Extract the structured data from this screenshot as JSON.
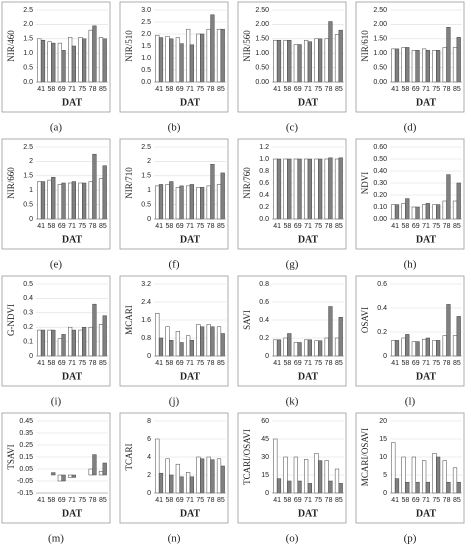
{
  "chart_data": [
    {
      "type": "bar",
      "label": "(a)",
      "y_label": "NIR/460",
      "x_label": "DAT",
      "categories": [
        "41",
        "58",
        "69",
        "71",
        "75",
        "78",
        "85"
      ],
      "series": [
        {
          "color": "#ffffff",
          "values": [
            1.5,
            1.4,
            1.35,
            1.55,
            1.55,
            1.8,
            1.55
          ]
        },
        {
          "color": "#808080",
          "values": [
            1.45,
            1.35,
            1.1,
            1.25,
            1.5,
            1.95,
            1.5
          ]
        }
      ],
      "ylim": [
        0,
        2.5
      ],
      "yticks": [
        {
          "value": 0,
          "label": "0.0"
        },
        0.5,
        {
          "value": 1,
          "label": "1.0"
        },
        1.5,
        {
          "value": 2,
          "label": "2.0"
        },
        2.5
      ]
    },
    {
      "type": "bar",
      "label": "(b)",
      "y_label": "NIR/510",
      "x_label": "DAT",
      "categories": [
        "41",
        "58",
        "69",
        "71",
        "75",
        "78",
        "85"
      ],
      "series": [
        {
          "color": "#ffffff",
          "values": [
            1.95,
            1.9,
            1.85,
            2.2,
            2.0,
            2.2,
            2.2
          ]
        },
        {
          "color": "#808080",
          "values": [
            1.85,
            1.8,
            1.6,
            1.55,
            2.0,
            2.8,
            2.2
          ]
        }
      ],
      "ylim": [
        0,
        3
      ],
      "yticks": [
        {
          "value": 0,
          "label": "0.0"
        },
        0.5,
        {
          "value": 1,
          "label": "1.0"
        },
        1.5,
        {
          "value": 2,
          "label": "2.0"
        },
        2.5,
        {
          "value": 3,
          "label": "3.0"
        }
      ]
    },
    {
      "type": "bar",
      "label": "(c)",
      "y_label": "NIR/560",
      "x_label": "DAT",
      "categories": [
        "41",
        "58",
        "69",
        "71",
        "75",
        "78",
        "85"
      ],
      "series": [
        {
          "color": "#ffffff",
          "values": [
            1.45,
            1.45,
            1.3,
            1.45,
            1.5,
            1.5,
            1.65
          ]
        },
        {
          "color": "#808080",
          "values": [
            1.45,
            1.45,
            1.3,
            1.4,
            1.5,
            2.1,
            1.8
          ]
        }
      ],
      "ylim": [
        0,
        2.5
      ],
      "yticks": [
        {
          "value": 0,
          "label": "0.00"
        },
        {
          "value": 0.5,
          "label": "0.50"
        },
        {
          "value": 1,
          "label": "1.00"
        },
        {
          "value": 1.5,
          "label": "1.50"
        },
        {
          "value": 2,
          "label": "2.00"
        },
        {
          "value": 2.5,
          "label": "2.50"
        }
      ]
    },
    {
      "type": "bar",
      "label": "(d)",
      "y_label": "NIR/610",
      "x_label": "DAT",
      "categories": [
        "41",
        "58",
        "69",
        "71",
        "75",
        "78",
        "85"
      ],
      "series": [
        {
          "color": "#ffffff",
          "values": [
            1.15,
            1.2,
            1.1,
            1.15,
            1.1,
            1.2,
            1.2
          ]
        },
        {
          "color": "#808080",
          "values": [
            1.15,
            1.2,
            1.1,
            1.1,
            1.1,
            1.9,
            1.55
          ]
        }
      ],
      "ylim": [
        0,
        2.5
      ],
      "yticks": [
        {
          "value": 0,
          "label": "0.00"
        },
        {
          "value": 0.5,
          "label": "0.50"
        },
        {
          "value": 1,
          "label": "1.00"
        },
        {
          "value": 1.5,
          "label": "1.50"
        },
        {
          "value": 2,
          "label": "2.00"
        },
        {
          "value": 2.5,
          "label": "2.50"
        }
      ]
    },
    {
      "type": "bar",
      "label": "(e)",
      "y_label": "NIR/660",
      "x_label": "DAT",
      "categories": [
        "41",
        "58",
        "69",
        "71",
        "75",
        "78",
        "85"
      ],
      "series": [
        {
          "color": "#ffffff",
          "values": [
            1.3,
            1.35,
            1.2,
            1.25,
            1.25,
            1.3,
            1.4
          ]
        },
        {
          "color": "#808080",
          "values": [
            1.3,
            1.45,
            1.25,
            1.3,
            1.25,
            2.25,
            1.85
          ]
        }
      ],
      "ylim": [
        0,
        2.5
      ],
      "yticks": [
        0,
        0.5,
        1,
        1.5,
        2,
        2.5
      ]
    },
    {
      "type": "bar",
      "label": "(f)",
      "y_label": "NIR/710",
      "x_label": "DAT",
      "categories": [
        "41",
        "58",
        "69",
        "71",
        "75",
        "78",
        "85"
      ],
      "series": [
        {
          "color": "#ffffff",
          "values": [
            1.15,
            1.2,
            1.1,
            1.15,
            1.1,
            1.15,
            1.2
          ]
        },
        {
          "color": "#808080",
          "values": [
            1.2,
            1.3,
            1.15,
            1.2,
            1.1,
            1.9,
            1.6
          ]
        }
      ],
      "ylim": [
        0,
        2.5
      ],
      "yticks": [
        0,
        0.5,
        1,
        1.5,
        2,
        2.5
      ]
    },
    {
      "type": "bar",
      "label": "(g)",
      "y_label": "NIR/760",
      "x_label": "DAT",
      "categories": [
        "41",
        "58",
        "69",
        "71",
        "75",
        "78",
        "85"
      ],
      "series": [
        {
          "color": "#ffffff",
          "values": [
            1.0,
            1.0,
            1.0,
            1.0,
            1.0,
            1.0,
            1.0
          ]
        },
        {
          "color": "#808080",
          "values": [
            1.0,
            1.0,
            1.0,
            1.0,
            1.0,
            1.02,
            1.02
          ]
        }
      ],
      "ylim": [
        0,
        1.2
      ],
      "yticks": [
        {
          "value": 0,
          "label": "0.0"
        },
        0.2,
        0.4,
        0.6,
        0.8,
        {
          "value": 1,
          "label": "1.0"
        },
        1.2
      ]
    },
    {
      "type": "bar",
      "label": "(h)",
      "y_label": "NDVI",
      "x_label": "DAT",
      "categories": [
        "41",
        "58",
        "69",
        "71",
        "75",
        "78",
        "85"
      ],
      "series": [
        {
          "color": "#ffffff",
          "values": [
            0.12,
            0.13,
            0.1,
            0.12,
            0.12,
            0.15,
            0.15
          ]
        },
        {
          "color": "#808080",
          "values": [
            0.12,
            0.17,
            0.1,
            0.13,
            0.12,
            0.37,
            0.3
          ]
        }
      ],
      "ylim": [
        0,
        0.6
      ],
      "yticks": [
        {
          "value": 0,
          "label": "0.00"
        },
        {
          "value": 0.1,
          "label": "0.10"
        },
        {
          "value": 0.2,
          "label": "0.20"
        },
        {
          "value": 0.3,
          "label": "0.30"
        },
        {
          "value": 0.4,
          "label": "0.40"
        },
        {
          "value": 0.5,
          "label": "0.50"
        },
        {
          "value": 0.6,
          "label": "0.60"
        }
      ]
    },
    {
      "type": "bar",
      "label": "(i)",
      "y_label": "G-NDVI",
      "x_label": "DAT",
      "categories": [
        "41",
        "58",
        "69",
        "71",
        "75",
        "78",
        "85"
      ],
      "series": [
        {
          "color": "#ffffff",
          "values": [
            0.18,
            0.18,
            0.12,
            0.2,
            0.18,
            0.2,
            0.22
          ]
        },
        {
          "color": "#808080",
          "values": [
            0.18,
            0.18,
            0.15,
            0.18,
            0.2,
            0.36,
            0.28
          ]
        }
      ],
      "ylim": [
        0,
        0.5
      ],
      "yticks": [
        0,
        0.1,
        0.2,
        0.3,
        0.4,
        0.5
      ]
    },
    {
      "type": "bar",
      "label": "(j)",
      "y_label": "MCARI",
      "x_label": "DAT",
      "categories": [
        "41",
        "58",
        "69",
        "71",
        "75",
        "78",
        "85"
      ],
      "series": [
        {
          "color": "#ffffff",
          "values": [
            1.9,
            1.3,
            1.1,
            0.9,
            1.4,
            1.4,
            1.3
          ]
        },
        {
          "color": "#808080",
          "values": [
            0.8,
            0.7,
            0.6,
            0.7,
            1.3,
            1.3,
            1.0
          ]
        }
      ],
      "ylim": [
        0,
        3.2
      ],
      "yticks": [
        0,
        0.8,
        1.6,
        2.4,
        3.2
      ]
    },
    {
      "type": "bar",
      "label": "(k)",
      "y_label": "SAVI",
      "x_label": "DAT",
      "categories": [
        "41",
        "58",
        "69",
        "71",
        "75",
        "78",
        "85"
      ],
      "series": [
        {
          "color": "#ffffff",
          "values": [
            0.18,
            0.2,
            0.15,
            0.18,
            0.17,
            0.2,
            0.2
          ]
        },
        {
          "color": "#808080",
          "values": [
            0.18,
            0.25,
            0.15,
            0.18,
            0.17,
            0.55,
            0.43
          ]
        }
      ],
      "ylim": [
        0,
        0.8
      ],
      "yticks": [
        0,
        0.2,
        0.4,
        0.6,
        0.8
      ]
    },
    {
      "type": "bar",
      "label": "(l)",
      "y_label": "OSAVI",
      "x_label": "DAT",
      "categories": [
        "41",
        "58",
        "69",
        "71",
        "75",
        "78",
        "85"
      ],
      "series": [
        {
          "color": "#ffffff",
          "values": [
            0.13,
            0.15,
            0.12,
            0.14,
            0.13,
            0.17,
            0.17
          ]
        },
        {
          "color": "#808080",
          "values": [
            0.13,
            0.18,
            0.12,
            0.15,
            0.13,
            0.43,
            0.33
          ]
        }
      ],
      "ylim": [
        0,
        0.6
      ],
      "yticks": [
        0,
        0.2,
        0.4,
        0.6
      ]
    },
    {
      "type": "bar",
      "label": "(m)",
      "y_label": "TSAVI",
      "x_label": "DAT",
      "categories": [
        "41",
        "58",
        "69",
        "71",
        "75",
        "78",
        "85"
      ],
      "series": [
        {
          "color": "#ffffff",
          "values": [
            0.0,
            0.0,
            -0.05,
            -0.02,
            0.0,
            0.05,
            0.03
          ]
        },
        {
          "color": "#808080",
          "values": [
            0.0,
            0.02,
            -0.05,
            -0.02,
            0.0,
            0.17,
            0.1
          ]
        }
      ],
      "ylim": [
        -0.15,
        0.45
      ],
      "yticks": [
        -0.15,
        -0.05,
        0.05,
        0.15,
        0.25,
        0.35,
        0.45
      ]
    },
    {
      "type": "bar",
      "label": "(n)",
      "y_label": "TCARI",
      "x_label": "DAT",
      "categories": [
        "41",
        "58",
        "69",
        "71",
        "75",
        "78",
        "85"
      ],
      "series": [
        {
          "color": "#ffffff",
          "values": [
            6,
            3.8,
            3.2,
            2.3,
            4,
            4,
            3.8
          ]
        },
        {
          "color": "#808080",
          "values": [
            2.2,
            2,
            1.8,
            1.8,
            3.8,
            3.7,
            3
          ]
        }
      ],
      "ylim": [
        0,
        8
      ],
      "yticks": [
        0,
        2,
        4,
        6,
        8
      ]
    },
    {
      "type": "bar",
      "label": "(o)",
      "y_label": "TCARI/OSAVI",
      "x_label": "DAT",
      "categories": [
        "41",
        "58",
        "69",
        "71",
        "75",
        "78",
        "85"
      ],
      "series": [
        {
          "color": "#ffffff",
          "values": [
            45,
            30,
            30,
            28,
            33,
            27,
            20
          ]
        },
        {
          "color": "#808080",
          "values": [
            12,
            10,
            10,
            8,
            27,
            10,
            8
          ]
        }
      ],
      "ylim": [
        0,
        60
      ],
      "yticks": [
        0,
        15,
        30,
        45,
        60
      ]
    },
    {
      "type": "bar",
      "label": "(p)",
      "y_label": "MCARI/OSAVI",
      "x_label": "DAT",
      "categories": [
        "41",
        "58",
        "69",
        "71",
        "75",
        "78",
        "85"
      ],
      "series": [
        {
          "color": "#ffffff",
          "values": [
            14,
            10,
            10,
            9,
            11,
            9,
            7
          ]
        },
        {
          "color": "#808080",
          "values": [
            4,
            3,
            3,
            3,
            10,
            3,
            3
          ]
        }
      ],
      "ylim": [
        0,
        20
      ],
      "yticks": [
        0,
        5,
        10,
        15,
        20
      ]
    }
  ]
}
